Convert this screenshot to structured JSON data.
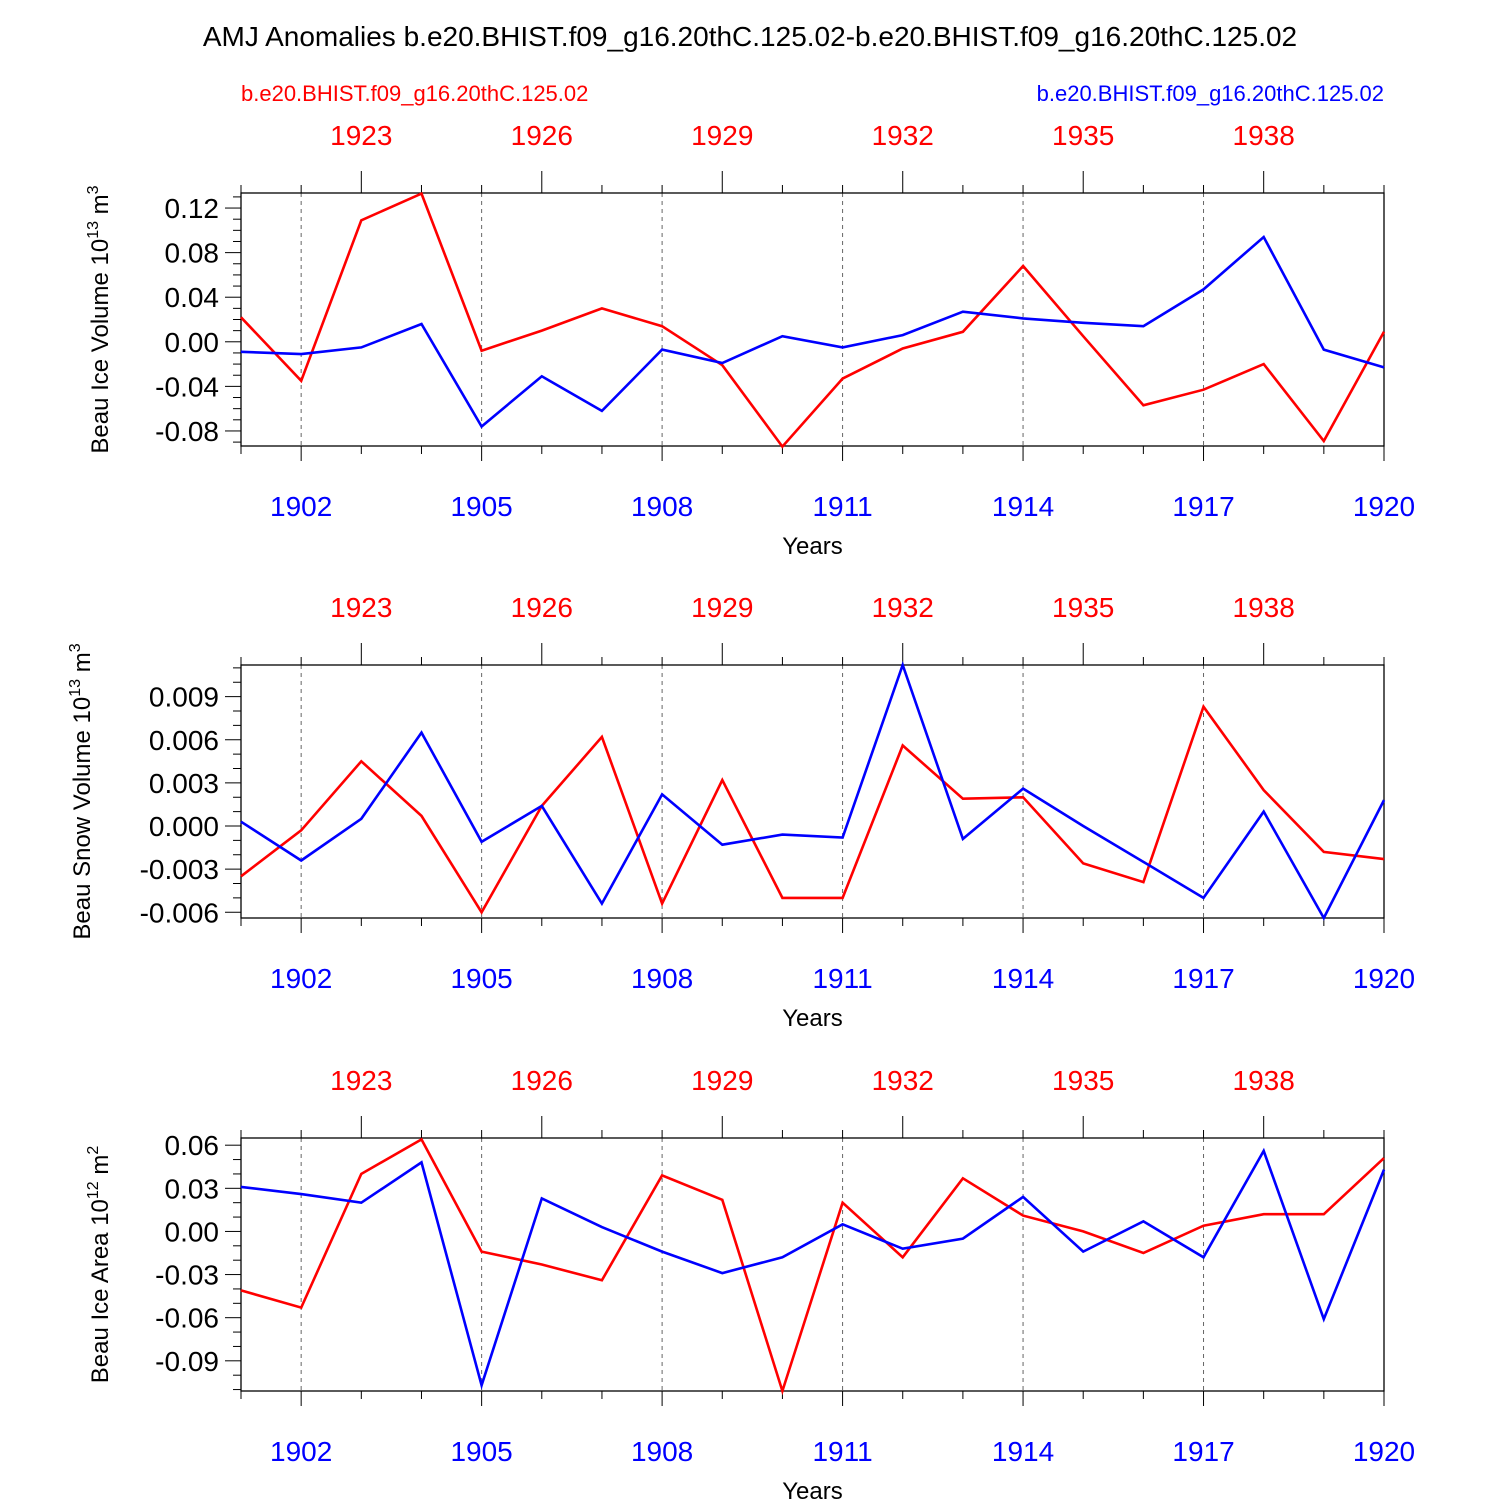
{
  "title": "AMJ Anomalies b.e20.BHIST.f09_g16.20thC.125.02-b.e20.BHIST.f09_g16.20thC.125.02",
  "legend": {
    "red_case": "b.e20.BHIST.f09_g16.20thC.125.02",
    "blue_case": "b.e20.BHIST.f09_g16.20thC.125.02"
  },
  "colors": {
    "red": "#ff0000",
    "blue": "#0000ff",
    "axis": "#000000",
    "grid": "#666666"
  },
  "chart_data": [
    {
      "type": "line",
      "ylabel": "Beau Ice Volume 10",
      "ylabel_exp": "13",
      "ylabel_unit": " m",
      "ylabel_unit_exp": "3",
      "xlabel": "Years",
      "xlim": [
        1901,
        1920
      ],
      "ylim": [
        -0.0935,
        0.1335
      ],
      "yticks": [
        -0.08,
        -0.04,
        0.0,
        0.04,
        0.08,
        0.12
      ],
      "yticklabels": [
        "-0.08",
        "-0.04",
        "0.00",
        "0.04",
        "0.08",
        "0.12"
      ],
      "yminor": 0.01,
      "x_bottom_ticks": [
        1902,
        1905,
        1908,
        1911,
        1914,
        1917,
        1920
      ],
      "x_top_ticks": [
        1923,
        1926,
        1929,
        1932,
        1935,
        1938
      ],
      "x_top_offset": 20,
      "series": [
        {
          "name": "b.e20.BHIST.f09_g16.20thC.125.02",
          "color": "red",
          "x": [
            1901,
            1902,
            1903,
            1904,
            1905,
            1906,
            1907,
            1908,
            1909,
            1910,
            1911,
            1912,
            1913,
            1914,
            1915,
            1916,
            1917,
            1918,
            1919,
            1920
          ],
          "values": [
            0.022,
            -0.035,
            0.109,
            0.133,
            -0.008,
            0.01,
            0.03,
            0.014,
            -0.021,
            -0.094,
            -0.033,
            -0.006,
            0.009,
            0.068,
            0.005,
            -0.057,
            -0.043,
            -0.02,
            -0.089,
            0.009
          ]
        },
        {
          "name": "b.e20.BHIST.f09_g16.20thC.125.02",
          "color": "blue",
          "x": [
            1901,
            1902,
            1903,
            1904,
            1905,
            1906,
            1907,
            1908,
            1909,
            1910,
            1911,
            1912,
            1913,
            1914,
            1915,
            1916,
            1917,
            1918,
            1919,
            1920
          ],
          "values": [
            -0.009,
            -0.011,
            -0.005,
            0.016,
            -0.076,
            -0.031,
            -0.062,
            -0.007,
            -0.019,
            0.005,
            -0.005,
            0.006,
            0.027,
            0.021,
            0.017,
            0.014,
            0.047,
            0.094,
            -0.007,
            -0.023
          ]
        }
      ]
    },
    {
      "type": "line",
      "ylabel": "Beau Snow Volume 10",
      "ylabel_exp": "13",
      "ylabel_unit": " m",
      "ylabel_unit_exp": "3",
      "xlabel": "Years",
      "xlim": [
        1901,
        1920
      ],
      "ylim": [
        -0.0064,
        0.0112
      ],
      "yticks": [
        -0.006,
        -0.003,
        0.0,
        0.003,
        0.006,
        0.009
      ],
      "yticklabels": [
        "-0.006",
        "-0.003",
        "0.000",
        "0.003",
        "0.006",
        "0.009"
      ],
      "yminor": 0.001,
      "x_bottom_ticks": [
        1902,
        1905,
        1908,
        1911,
        1914,
        1917,
        1920
      ],
      "x_top_ticks": [
        1923,
        1926,
        1929,
        1932,
        1935,
        1938
      ],
      "x_top_offset": 20,
      "series": [
        {
          "name": "b.e20.BHIST.f09_g16.20thC.125.02",
          "color": "red",
          "x": [
            1901,
            1902,
            1903,
            1904,
            1905,
            1906,
            1907,
            1908,
            1909,
            1910,
            1911,
            1912,
            1913,
            1914,
            1915,
            1916,
            1917,
            1918,
            1919,
            1920
          ],
          "values": [
            -0.0035,
            -0.0003,
            0.0045,
            0.0007,
            -0.006,
            0.0014,
            0.0062,
            -0.0054,
            0.0032,
            -0.005,
            -0.005,
            0.0056,
            0.0019,
            0.002,
            -0.0026,
            -0.0039,
            0.0083,
            0.0025,
            -0.0018,
            -0.0023
          ]
        },
        {
          "name": "b.e20.BHIST.f09_g16.20thC.125.02",
          "color": "blue",
          "x": [
            1901,
            1902,
            1903,
            1904,
            1905,
            1906,
            1907,
            1908,
            1909,
            1910,
            1911,
            1912,
            1913,
            1914,
            1915,
            1916,
            1917,
            1918,
            1919,
            1920
          ],
          "values": [
            0.0003,
            -0.0024,
            0.0005,
            0.0065,
            -0.0011,
            0.0014,
            -0.0054,
            0.0022,
            -0.0013,
            -0.0006,
            -0.0008,
            0.0112,
            -0.0009,
            0.0026,
            0.0,
            -0.0025,
            -0.005,
            0.001,
            -0.0064,
            0.0018
          ]
        }
      ]
    },
    {
      "type": "line",
      "ylabel": "Beau Ice Area 10",
      "ylabel_exp": "12",
      "ylabel_unit": " m",
      "ylabel_unit_exp": "2",
      "xlabel": "Years",
      "xlim": [
        1901,
        1920
      ],
      "ylim": [
        -0.111,
        0.065
      ],
      "yticks": [
        -0.09,
        -0.06,
        -0.03,
        0.0,
        0.03,
        0.06
      ],
      "yticklabels": [
        "-0.09",
        "-0.06",
        "-0.03",
        "0.00",
        "0.03",
        "0.06"
      ],
      "yminor": 0.01,
      "x_bottom_ticks": [
        1902,
        1905,
        1908,
        1911,
        1914,
        1917,
        1920
      ],
      "x_top_ticks": [
        1923,
        1926,
        1929,
        1932,
        1935,
        1938
      ],
      "x_top_offset": 20,
      "series": [
        {
          "name": "b.e20.BHIST.f09_g16.20thC.125.02",
          "color": "red",
          "x": [
            1901,
            1902,
            1903,
            1904,
            1905,
            1906,
            1907,
            1908,
            1909,
            1910,
            1911,
            1912,
            1913,
            1914,
            1915,
            1916,
            1917,
            1918,
            1919,
            1920
          ],
          "values": [
            -0.041,
            -0.053,
            0.04,
            0.064,
            -0.014,
            -0.023,
            -0.034,
            0.039,
            0.022,
            -0.111,
            0.02,
            -0.018,
            0.037,
            0.011,
            0.0,
            -0.015,
            0.004,
            0.012,
            0.012,
            0.051
          ]
        },
        {
          "name": "b.e20.BHIST.f09_g16.20thC.125.02",
          "color": "blue",
          "x": [
            1901,
            1902,
            1903,
            1904,
            1905,
            1906,
            1907,
            1908,
            1909,
            1910,
            1911,
            1912,
            1913,
            1914,
            1915,
            1916,
            1917,
            1918,
            1919,
            1920
          ],
          "values": [
            0.031,
            0.026,
            0.02,
            0.048,
            -0.107,
            0.023,
            0.003,
            -0.014,
            -0.029,
            -0.018,
            0.005,
            -0.012,
            -0.005,
            0.024,
            -0.014,
            0.007,
            -0.018,
            0.056,
            -0.061,
            0.043
          ]
        }
      ]
    }
  ]
}
